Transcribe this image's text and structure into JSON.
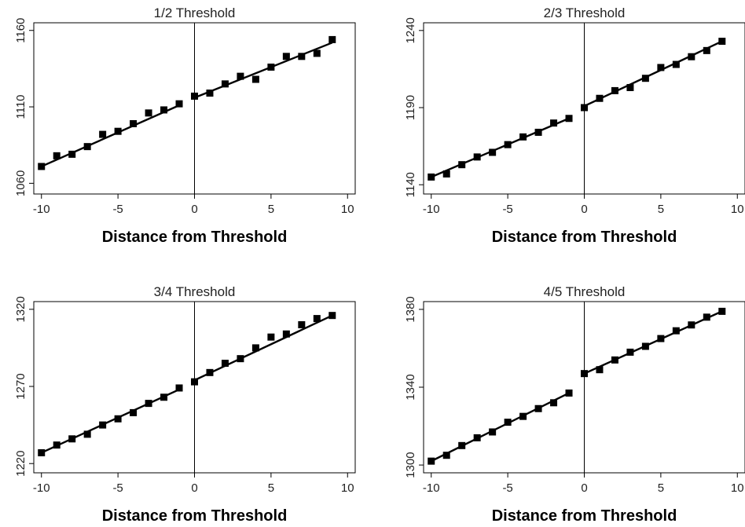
{
  "chart_data": [
    {
      "type": "scatter",
      "title": "1/2 Threshold",
      "xlabel": "Distance from Threshold",
      "ylabel": "",
      "xlim": [
        -10.5,
        10.5
      ],
      "ylim": [
        1053,
        1165
      ],
      "xticks": [
        -10,
        -5,
        0,
        5,
        10
      ],
      "xtick_labels": [
        "-10",
        "-5",
        "0",
        "5",
        "10"
      ],
      "yticks": [
        1060,
        1110,
        1160
      ],
      "ytick_labels": [
        "1060",
        "1110",
        "1160"
      ],
      "threshold_line_x": 0,
      "x": [
        -10,
        -9,
        -8,
        -7,
        -6,
        -5,
        -4,
        -3,
        -2,
        -1,
        0,
        1,
        2,
        3,
        4,
        5,
        6,
        7,
        8,
        9
      ],
      "y": [
        1071,
        1078,
        1079,
        1084,
        1092,
        1094,
        1099,
        1106,
        1108,
        1112,
        1117,
        1119,
        1125,
        1130,
        1128,
        1136,
        1143,
        1143,
        1145,
        1154
      ],
      "fit_left": [
        [
          -10,
          1071
        ],
        [
          -1,
          1111
        ]
      ],
      "fit_right": [
        [
          0,
          1116
        ],
        [
          9,
          1152
        ]
      ]
    },
    {
      "type": "scatter",
      "title": "2/3 Threshold",
      "xlabel": "Distance from Threshold",
      "ylabel": "",
      "xlim": [
        -10.5,
        10.5
      ],
      "ylim": [
        1134,
        1245
      ],
      "xticks": [
        -10,
        -5,
        0,
        5,
        10
      ],
      "xtick_labels": [
        "-10",
        "-5",
        "0",
        "5",
        "10"
      ],
      "yticks": [
        1140,
        1190,
        1240
      ],
      "ytick_labels": [
        "1140",
        "1190",
        "1240"
      ],
      "threshold_line_x": 0,
      "x": [
        -10,
        -9,
        -8,
        -7,
        -6,
        -5,
        -4,
        -3,
        -2,
        -1,
        0,
        1,
        2,
        3,
        4,
        5,
        6,
        7,
        8,
        9
      ],
      "y": [
        1145,
        1147,
        1153,
        1158,
        1161,
        1166,
        1171,
        1174,
        1180,
        1183,
        1190,
        1196,
        1201,
        1203,
        1209,
        1216,
        1218,
        1223,
        1227,
        1233
      ],
      "fit_left": [
        [
          -10,
          1145
        ],
        [
          -1,
          1183
        ]
      ],
      "fit_right": [
        [
          0,
          1191
        ],
        [
          9,
          1233
        ]
      ]
    },
    {
      "type": "scatter",
      "title": "3/4 Threshold",
      "xlabel": "Distance from Threshold",
      "ylabel": "",
      "xlim": [
        -10.5,
        10.5
      ],
      "ylim": [
        1214,
        1325
      ],
      "xticks": [
        -10,
        -5,
        0,
        5,
        10
      ],
      "xtick_labels": [
        "-10",
        "-5",
        "0",
        "5",
        "10"
      ],
      "yticks": [
        1220,
        1270,
        1320
      ],
      "ytick_labels": [
        "1220",
        "1270",
        "1320"
      ],
      "threshold_line_x": 0,
      "x": [
        -10,
        -9,
        -8,
        -7,
        -6,
        -5,
        -4,
        -3,
        -2,
        -1,
        0,
        1,
        2,
        3,
        4,
        5,
        6,
        7,
        8,
        9
      ],
      "y": [
        1227,
        1232,
        1236,
        1239,
        1245,
        1249,
        1253,
        1259,
        1263,
        1269,
        1273,
        1279,
        1285,
        1288,
        1295,
        1302,
        1304,
        1310,
        1314,
        1316
      ],
      "fit_left": [
        [
          -10,
          1227
        ],
        [
          -1,
          1268
        ]
      ],
      "fit_right": [
        [
          0,
          1274
        ],
        [
          9,
          1316
        ]
      ]
    },
    {
      "type": "scatter",
      "title": "4/5 Threshold",
      "xlabel": "Distance from Threshold",
      "ylabel": "",
      "xlim": [
        -10.5,
        10.5
      ],
      "ylim": [
        1296,
        1384
      ],
      "xticks": [
        -10,
        -5,
        0,
        5,
        10
      ],
      "xtick_labels": [
        "-10",
        "-5",
        "0",
        "5",
        "10"
      ],
      "yticks": [
        1300,
        1340,
        1380
      ],
      "ytick_labels": [
        "1300",
        "1340",
        "1380"
      ],
      "threshold_line_x": 0,
      "x": [
        -10,
        -9,
        -8,
        -7,
        -6,
        -5,
        -4,
        -3,
        -2,
        -1,
        0,
        1,
        2,
        3,
        4,
        5,
        6,
        7,
        8,
        9
      ],
      "y": [
        1302,
        1305,
        1310,
        1314,
        1317,
        1322,
        1325,
        1329,
        1332,
        1337,
        1347,
        1349,
        1354,
        1358,
        1361,
        1365,
        1369,
        1372,
        1376,
        1379
      ],
      "fit_left": [
        [
          -10,
          1302
        ],
        [
          -1,
          1337
        ]
      ],
      "fit_right": [
        [
          0,
          1347
        ],
        [
          9,
          1379
        ]
      ]
    }
  ]
}
